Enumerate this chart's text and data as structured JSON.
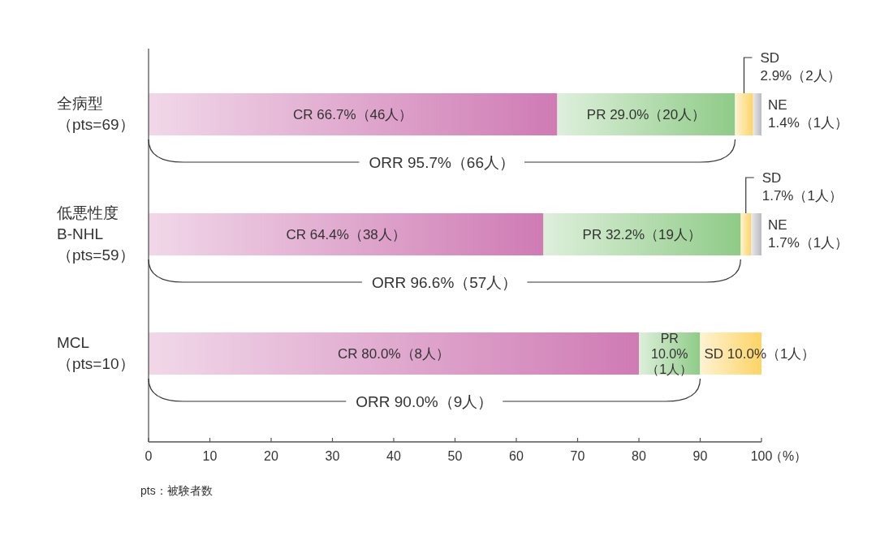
{
  "chart_data": {
    "type": "bar",
    "orientation": "horizontal",
    "stacked": true,
    "categories": [
      "全病型（pts=69）",
      "低悪性度B-NHL（pts=59）",
      "MCL（pts=10）"
    ],
    "series": [
      {
        "color": "#cf7bb4",
        "values": [
          66.7,
          64.4,
          80.0
        ],
        "value_labels": [
          "CR 66.7%（46人）",
          "CR 64.4%（38人）",
          "CR 80.0%（8人）"
        ]
      },
      {
        "color": "#8fcb87",
        "values": [
          29.0,
          32.2,
          10.0
        ],
        "value_labels": [
          "PR 29.0%（20人）",
          "PR 32.2%（19人）",
          "PR 10.0%（1人）"
        ]
      },
      {
        "color": "#fdd466",
        "values": [
          2.9,
          1.7,
          10.0
        ],
        "value_labels": [
          "SD 2.9%（2人）",
          "SD 1.7%（1人）",
          "SD 10.0%（1人）"
        ]
      },
      {
        "color": "#b9b9c0",
        "values": [
          1.4,
          1.7,
          null
        ],
        "value_labels": [
          "NE 1.4%（1人）",
          "NE 1.7%（1人）",
          null
        ]
      }
    ],
    "xlim": [
      0,
      100
    ],
    "xticks": [
      0,
      10,
      20,
      30,
      40,
      50,
      60,
      70,
      80,
      90,
      100
    ],
    "xlabel": "（%）",
    "annotations": [
      "ORR 95.7%（66人）",
      "ORR 96.6%（57人）",
      "ORR 90.0%（9人）",
      "pts：被験者数"
    ]
  }
}
